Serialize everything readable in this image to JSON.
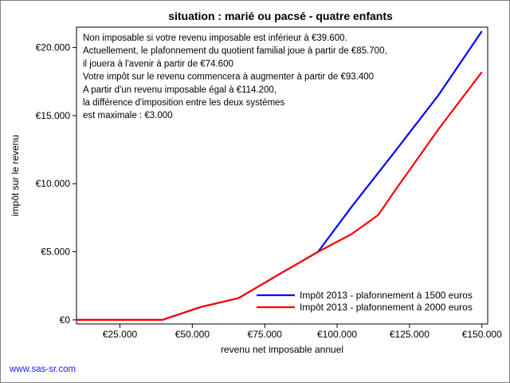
{
  "chart_data": {
    "type": "line",
    "title": "situation : marié ou pacsé - quatre enfants",
    "xlabel": "revenu net imposable annuel",
    "ylabel": "impôt sur le revenu",
    "xlim": [
      10000,
      152000
    ],
    "ylim": [
      -300,
      21500
    ],
    "x_ticks": [
      25000,
      50000,
      75000,
      100000,
      125000,
      150000
    ],
    "x_tick_labels": [
      "€25.000",
      "€50.000",
      "€75.000",
      "€100.000",
      "€125.000",
      "€150.000"
    ],
    "y_ticks": [
      0,
      5000,
      10000,
      15000,
      20000
    ],
    "y_tick_labels": [
      "€0",
      "€5.000",
      "€10.000",
      "€15.000",
      "€20.000"
    ],
    "grid": false,
    "legend_position": "bottom-right",
    "series": [
      {
        "name": "Impôt 2013 - plafonnement à 1500 euros",
        "color": "#0000ff",
        "x": [
          10000,
          39600,
          53000,
          66000,
          80000,
          93400,
          105000,
          119000,
          135000,
          150000
        ],
        "y": [
          0,
          0,
          950,
          1600,
          3350,
          5000,
          8300,
          12100,
          16500,
          21200
        ]
      },
      {
        "name": "Impôt 2013 - plafonnement à 2000 euros",
        "color": "#ff0000",
        "x": [
          10000,
          39600,
          53000,
          66000,
          80000,
          93400,
          105000,
          114200,
          120000,
          135000,
          150000
        ],
        "y": [
          0,
          0,
          950,
          1600,
          3350,
          5000,
          6300,
          7700,
          9500,
          14000,
          18200
        ]
      }
    ],
    "annotation_lines": [
      "Non imposable si votre revenu imposable est inférieur à €39.600.",
      "Actuellement, le plafonnement du quotient familial joue à partir de €85.700,",
      "il jouera à l'avenir à partir de €74.600",
      "Votre impôt sur le revenu commencera à augmenter à partir de €93.400",
      "A partir d'un revenu imposable égal à €114.200,",
      "la différence d'imposition entre les deux systèmes",
      "est maximale : €3.000"
    ]
  },
  "footer": {
    "link_text": "www.sas-sr.com"
  }
}
